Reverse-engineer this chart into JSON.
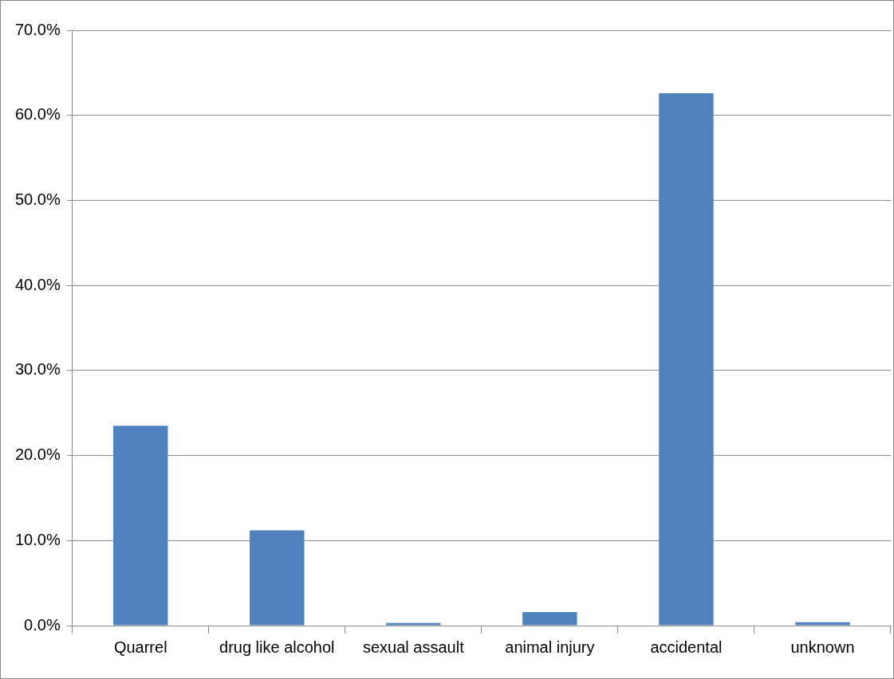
{
  "chart_data": {
    "type": "bar",
    "categories": [
      "Quarrel",
      "drug like alcohol",
      "sexual assault",
      "animal injury",
      "accidental",
      "unknown"
    ],
    "values": [
      23.5,
      11.2,
      0.3,
      1.6,
      62.6,
      0.4
    ],
    "color": "#4f81bd",
    "ylim": [
      0,
      70
    ],
    "yticks": [
      {
        "value": 0,
        "label": "0.0%"
      },
      {
        "value": 10,
        "label": "10.0%"
      },
      {
        "value": 20,
        "label": "20.0%"
      },
      {
        "value": 30,
        "label": "30.0%"
      },
      {
        "value": 40,
        "label": "40.0%"
      },
      {
        "value": 50,
        "label": "50.0%"
      },
      {
        "value": 60,
        "label": "60.0%"
      },
      {
        "value": 70,
        "label": "70.0%"
      }
    ],
    "grid": "y",
    "legend": false
  }
}
